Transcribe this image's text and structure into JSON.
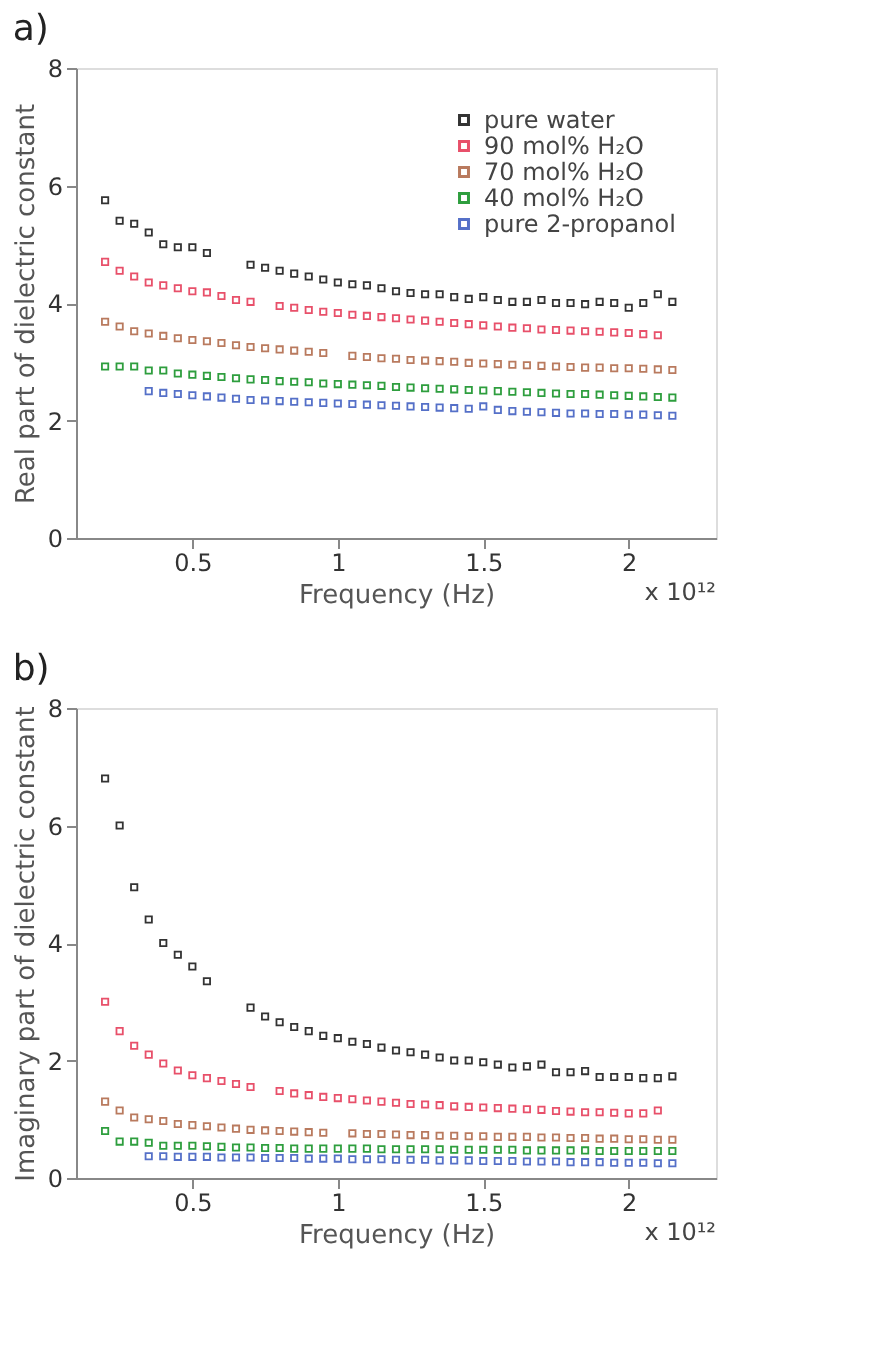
{
  "chart_data": [
    {
      "type": "scatter",
      "title": "a)",
      "xlabel": "Frequency (Hz)",
      "ylabel": "Real part of dielectric constant",
      "annotations": [
        "x 10¹²"
      ],
      "x": [
        0.2,
        0.25,
        0.3,
        0.35,
        0.4,
        0.45,
        0.5,
        0.55,
        0.6,
        0.65,
        0.7,
        0.75,
        0.8,
        0.85,
        0.9,
        0.95,
        1.0,
        1.05,
        1.1,
        1.15,
        1.2,
        1.25,
        1.3,
        1.35,
        1.4,
        1.45,
        1.5,
        1.55,
        1.6,
        1.65,
        1.7,
        1.75,
        1.8,
        1.85,
        1.9,
        1.95,
        2.0,
        2.05,
        2.1,
        2.15
      ],
      "series": [
        {
          "name": "pure water",
          "color": "#333333",
          "values": [
            5.75,
            5.4,
            5.35,
            5.2,
            5.0,
            4.95,
            4.95,
            4.85,
            null,
            null,
            4.65,
            4.6,
            4.55,
            4.5,
            4.45,
            4.4,
            4.35,
            4.32,
            4.3,
            4.25,
            4.2,
            4.17,
            4.15,
            4.15,
            4.1,
            4.07,
            4.1,
            4.05,
            4.02,
            4.02,
            4.05,
            4.0,
            4.0,
            3.98,
            4.02,
            4.0,
            3.92,
            4.0,
            4.15,
            4.02
          ]
        },
        {
          "name": "90 mol% H₂O",
          "color": "#e8506a",
          "values": [
            4.7,
            4.55,
            4.45,
            4.35,
            4.3,
            4.25,
            4.2,
            4.18,
            4.12,
            4.05,
            4.02,
            null,
            3.95,
            3.92,
            3.88,
            3.85,
            3.83,
            3.8,
            3.78,
            3.76,
            3.74,
            3.72,
            3.7,
            3.68,
            3.66,
            3.64,
            3.62,
            3.6,
            3.58,
            3.57,
            3.55,
            3.54,
            3.53,
            3.52,
            3.51,
            3.5,
            3.49,
            3.47,
            3.45,
            null
          ]
        },
        {
          "name": "70 mol% H₂O",
          "color": "#b97a5e",
          "values": [
            3.68,
            3.6,
            3.52,
            3.48,
            3.44,
            3.4,
            3.37,
            3.35,
            3.32,
            3.28,
            3.25,
            3.23,
            3.21,
            3.19,
            3.17,
            3.15,
            null,
            3.1,
            3.08,
            3.06,
            3.05,
            3.03,
            3.02,
            3.01,
            3.0,
            2.98,
            2.97,
            2.96,
            2.95,
            2.94,
            2.93,
            2.92,
            2.91,
            2.9,
            2.9,
            2.89,
            2.89,
            2.88,
            2.87,
            2.86
          ]
        },
        {
          "name": "40 mol% H₂O",
          "color": "#2e9e3e",
          "values": [
            2.92,
            2.92,
            2.92,
            2.85,
            2.85,
            2.8,
            2.78,
            2.76,
            2.74,
            2.72,
            2.7,
            2.69,
            2.67,
            2.66,
            2.65,
            2.63,
            2.62,
            2.61,
            2.6,
            2.59,
            2.57,
            2.56,
            2.55,
            2.54,
            2.53,
            2.52,
            2.51,
            2.5,
            2.49,
            2.48,
            2.47,
            2.46,
            2.45,
            2.45,
            2.44,
            2.43,
            2.42,
            2.41,
            2.4,
            2.39
          ]
        },
        {
          "name": "pure 2-propanol",
          "color": "#5570c8",
          "values": [
            null,
            null,
            null,
            2.5,
            2.47,
            2.45,
            2.43,
            2.41,
            2.39,
            2.37,
            2.35,
            2.34,
            2.33,
            2.32,
            2.31,
            2.3,
            2.29,
            2.28,
            2.27,
            2.26,
            2.25,
            2.24,
            2.23,
            2.22,
            2.21,
            2.2,
            2.24,
            2.18,
            2.16,
            2.15,
            2.14,
            2.13,
            2.12,
            2.12,
            2.11,
            2.11,
            2.1,
            2.1,
            2.09,
            2.08
          ]
        }
      ],
      "xlim": [
        0.1,
        2.3
      ],
      "ylim": [
        0,
        8
      ],
      "xticks": [
        0.5,
        1,
        1.5,
        2
      ],
      "yticks": [
        0,
        2,
        4,
        6,
        8
      ],
      "marker": "square",
      "legend": "top right"
    },
    {
      "type": "scatter",
      "title": "b)",
      "xlabel": "Frequency (Hz)",
      "ylabel": "Imaginary part of dielectric constant",
      "annotations": [
        "x 10¹²"
      ],
      "x": [
        0.2,
        0.25,
        0.3,
        0.35,
        0.4,
        0.45,
        0.5,
        0.55,
        0.6,
        0.65,
        0.7,
        0.75,
        0.8,
        0.85,
        0.9,
        0.95,
        1.0,
        1.05,
        1.1,
        1.15,
        1.2,
        1.25,
        1.3,
        1.35,
        1.4,
        1.45,
        1.5,
        1.55,
        1.6,
        1.65,
        1.7,
        1.75,
        1.8,
        1.85,
        1.9,
        1.95,
        2.0,
        2.05,
        2.1,
        2.15
      ],
      "series": [
        {
          "name": "pure water",
          "color": "#333333",
          "values": [
            6.8,
            6.0,
            4.95,
            4.4,
            4.0,
            3.8,
            3.6,
            3.35,
            null,
            null,
            2.9,
            2.75,
            2.65,
            2.57,
            2.5,
            2.42,
            2.38,
            2.32,
            2.28,
            2.22,
            2.17,
            2.14,
            2.1,
            2.05,
            2.0,
            2.0,
            1.97,
            1.93,
            1.88,
            1.9,
            1.93,
            1.8,
            1.8,
            1.82,
            1.72,
            1.72,
            1.72,
            1.7,
            1.7,
            1.73
          ]
        },
        {
          "name": "90 mol% H₂O",
          "color": "#e8506a",
          "values": [
            3.0,
            2.5,
            2.25,
            2.1,
            1.95,
            1.83,
            1.75,
            1.7,
            1.65,
            1.6,
            1.55,
            null,
            1.48,
            1.44,
            1.41,
            1.38,
            1.36,
            1.34,
            1.32,
            1.3,
            1.28,
            1.26,
            1.25,
            1.24,
            1.22,
            1.21,
            1.2,
            1.19,
            1.18,
            1.17,
            1.16,
            1.14,
            1.13,
            1.12,
            1.12,
            1.11,
            1.1,
            1.1,
            1.15,
            null
          ]
        },
        {
          "name": "70 mol% H₂O",
          "color": "#b97a5e",
          "values": [
            1.3,
            1.15,
            1.03,
            1.0,
            0.97,
            0.92,
            0.9,
            0.88,
            0.86,
            0.84,
            0.82,
            0.81,
            0.8,
            0.79,
            0.78,
            0.77,
            null,
            0.76,
            0.75,
            0.75,
            0.74,
            0.73,
            0.73,
            0.72,
            0.72,
            0.71,
            0.71,
            0.7,
            0.7,
            0.7,
            0.69,
            0.69,
            0.68,
            0.68,
            0.67,
            0.67,
            0.66,
            0.66,
            0.65,
            0.65
          ]
        },
        {
          "name": "40 mol% H₂O",
          "color": "#2e9e3e",
          "values": [
            0.8,
            0.62,
            0.62,
            0.6,
            0.55,
            0.55,
            0.55,
            0.54,
            0.53,
            0.52,
            0.52,
            0.51,
            0.51,
            0.5,
            0.5,
            0.5,
            0.5,
            0.5,
            0.5,
            0.49,
            0.49,
            0.49,
            0.49,
            0.49,
            0.48,
            0.48,
            0.48,
            0.48,
            0.48,
            0.47,
            0.47,
            0.47,
            0.47,
            0.47,
            0.46,
            0.46,
            0.46,
            0.46,
            0.46,
            0.46
          ]
        },
        {
          "name": "pure 2-propanol",
          "color": "#5570c8",
          "values": [
            null,
            null,
            null,
            0.37,
            0.37,
            0.36,
            0.36,
            0.36,
            0.35,
            0.35,
            0.35,
            0.34,
            0.34,
            0.34,
            0.33,
            0.33,
            0.33,
            0.32,
            0.32,
            0.32,
            0.31,
            0.31,
            0.31,
            0.3,
            0.3,
            0.3,
            0.29,
            0.29,
            0.29,
            0.28,
            0.28,
            0.28,
            0.27,
            0.27,
            0.27,
            0.26,
            0.26,
            0.26,
            0.25,
            0.25
          ]
        }
      ],
      "xlim": [
        0.1,
        2.3
      ],
      "ylim": [
        0,
        8
      ],
      "xticks": [
        0.5,
        1,
        1.5,
        2
      ],
      "yticks": [
        0,
        2,
        4,
        6,
        8
      ],
      "marker": "square",
      "legend": "top right"
    }
  ]
}
